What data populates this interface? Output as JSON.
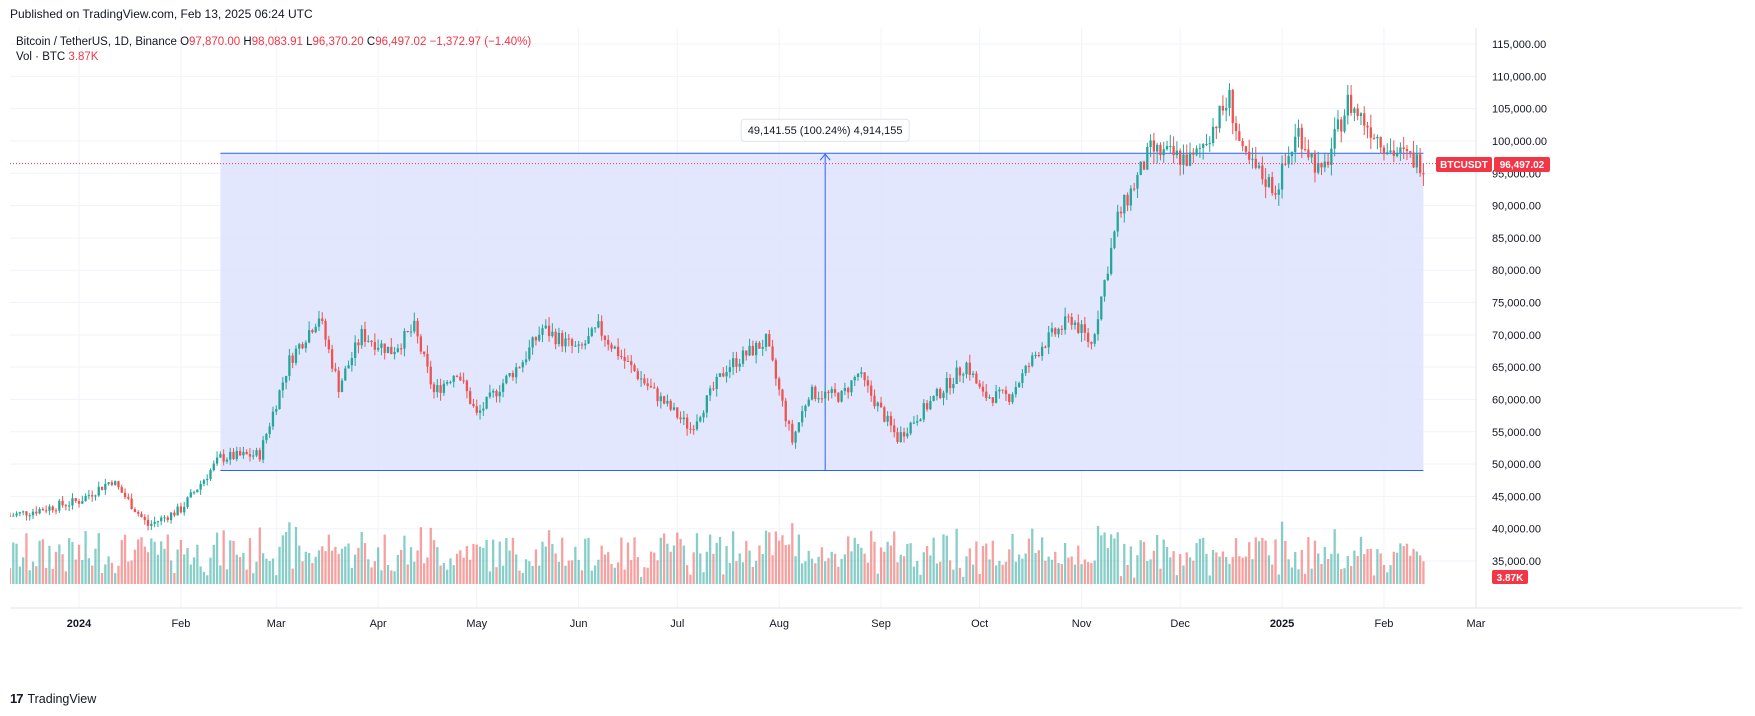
{
  "header": {
    "published": "Published on TradingView.com, Feb 13, 2025 06:24 UTC"
  },
  "legend": {
    "symbol": "Bitcoin / TetherUS, 1D, Binance",
    "o_label": "O",
    "o_value": "97,870.00",
    "h_label": "H",
    "h_value": "98,083.91",
    "l_label": "L",
    "l_value": "96,370.20",
    "c_label": "C",
    "c_value": "96,497.02",
    "change": "−1,372.97 (−1.40%)",
    "vol_label": "Vol · BTC",
    "vol_value": "3.87K"
  },
  "badges": {
    "ticker": "BTCUSDT",
    "last_price": "96,497.02",
    "last_volume": "3.87K"
  },
  "measure": {
    "label": "49,141.55 (100.24%) 4,914,155"
  },
  "footer": {
    "brand": "TradingView",
    "logo": "17"
  },
  "colors": {
    "up": "#26a69a",
    "down": "#ef5350",
    "range_fill": "#dee3fd",
    "range_line": "#2962ff"
  },
  "chart_data": {
    "type": "candlestick",
    "title": "Bitcoin / TetherUS, 1D, Binance",
    "ylim": [
      40000,
      118000
    ],
    "y_ticks": [
      "115,000.00",
      "110,000.00",
      "105,000.00",
      "100,000.00",
      "95,000.00",
      "90,000.00",
      "85,000.00",
      "80,000.00",
      "75,000.00",
      "70,000.00",
      "65,000.00",
      "60,000.00",
      "55,000.00",
      "50,000.00",
      "45,000.00",
      "40,000.00",
      "35,000.00"
    ],
    "x_ticks": [
      "2024",
      "Feb",
      "Mar",
      "Apr",
      "May",
      "Jun",
      "Jul",
      "Aug",
      "Sep",
      "Oct",
      "Nov",
      "Dec",
      "2025",
      "Feb",
      "Mar"
    ],
    "x_tick_dates": [
      "2024-01-01",
      "2024-02-01",
      "2024-03-01",
      "2024-04-01",
      "2024-05-01",
      "2024-06-01",
      "2024-07-01",
      "2024-08-01",
      "2024-09-01",
      "2024-10-01",
      "2024-11-01",
      "2024-12-01",
      "2025-01-01",
      "2025-02-01",
      "2025-03-01"
    ],
    "x_range": [
      "2023-12-11",
      "2025-03-01"
    ],
    "price_range": {
      "from_date": "2024-02-13",
      "to_date": "2025-02-13",
      "low": 49000,
      "high": 98100,
      "arrow_date": "2024-08-15"
    },
    "closes": [
      {
        "date": "2023-12-11",
        "close": 42000
      },
      {
        "date": "2023-12-25",
        "close": 43500
      },
      {
        "date": "2024-01-01",
        "close": 44300
      },
      {
        "date": "2024-01-11",
        "close": 47500
      },
      {
        "date": "2024-01-22",
        "close": 40500
      },
      {
        "date": "2024-02-01",
        "close": 43000
      },
      {
        "date": "2024-02-13",
        "close": 51000
      },
      {
        "date": "2024-02-25",
        "close": 51500
      },
      {
        "date": "2024-03-05",
        "close": 66000
      },
      {
        "date": "2024-03-14",
        "close": 73000
      },
      {
        "date": "2024-03-20",
        "close": 62000
      },
      {
        "date": "2024-03-27",
        "close": 70000
      },
      {
        "date": "2024-04-05",
        "close": 67500
      },
      {
        "date": "2024-04-12",
        "close": 71000
      },
      {
        "date": "2024-04-18",
        "close": 61000
      },
      {
        "date": "2024-04-25",
        "close": 64500
      },
      {
        "date": "2024-05-01",
        "close": 57500
      },
      {
        "date": "2024-05-08",
        "close": 62000
      },
      {
        "date": "2024-05-15",
        "close": 66000
      },
      {
        "date": "2024-05-21",
        "close": 71000
      },
      {
        "date": "2024-06-01",
        "close": 67500
      },
      {
        "date": "2024-06-07",
        "close": 71000
      },
      {
        "date": "2024-06-15",
        "close": 66000
      },
      {
        "date": "2024-06-24",
        "close": 61000
      },
      {
        "date": "2024-07-05",
        "close": 55500
      },
      {
        "date": "2024-07-16",
        "close": 65000
      },
      {
        "date": "2024-07-28",
        "close": 69000
      },
      {
        "date": "2024-08-05",
        "close": 53500
      },
      {
        "date": "2024-08-10",
        "close": 61000
      },
      {
        "date": "2024-08-20",
        "close": 60500
      },
      {
        "date": "2024-08-25",
        "close": 64000
      },
      {
        "date": "2024-09-06",
        "close": 54000
      },
      {
        "date": "2024-09-15",
        "close": 59000
      },
      {
        "date": "2024-09-27",
        "close": 65500
      },
      {
        "date": "2024-10-02",
        "close": 60500
      },
      {
        "date": "2024-10-10",
        "close": 60500
      },
      {
        "date": "2024-10-20",
        "close": 68500
      },
      {
        "date": "2024-10-29",
        "close": 72500
      },
      {
        "date": "2024-11-04",
        "close": 68500
      },
      {
        "date": "2024-11-12",
        "close": 88000
      },
      {
        "date": "2024-11-22",
        "close": 98500
      },
      {
        "date": "2024-12-05",
        "close": 97000
      },
      {
        "date": "2024-12-16",
        "close": 106500
      },
      {
        "date": "2024-12-20",
        "close": 97500
      },
      {
        "date": "2024-12-30",
        "close": 92500
      },
      {
        "date": "2025-01-06",
        "close": 101500
      },
      {
        "date": "2025-01-13",
        "close": 94500
      },
      {
        "date": "2025-01-21",
        "close": 106000
      },
      {
        "date": "2025-01-27",
        "close": 102500
      },
      {
        "date": "2025-02-03",
        "close": 98500
      },
      {
        "date": "2025-02-13",
        "close": 96497
      }
    ]
  }
}
